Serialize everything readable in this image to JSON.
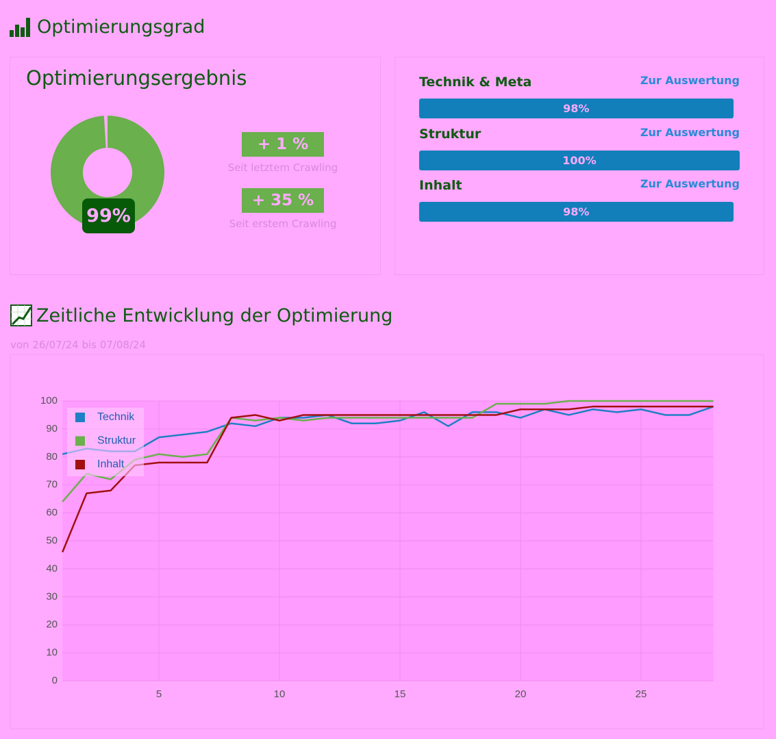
{
  "header": {
    "title": "Optimierungsgrad"
  },
  "result": {
    "title": "Optimierungsergebnis",
    "donut": {
      "value": 99,
      "label": "99%"
    },
    "changes": [
      {
        "value": "+ 1 %",
        "caption": "Seit letztem Crawling"
      },
      {
        "value": "+ 35 %",
        "caption": "Seit erstem Crawling"
      }
    ]
  },
  "categories": [
    {
      "name": "Technik & Meta",
      "link": "Zur Auswertung",
      "value": 98,
      "label": "98%"
    },
    {
      "name": "Struktur",
      "link": "Zur Auswertung",
      "value": 100,
      "label": "100%"
    },
    {
      "name": "Inhalt",
      "link": "Zur Auswertung",
      "value": 98,
      "label": "98%"
    }
  ],
  "development": {
    "title": "Zeitliche Entwicklung der Optimierung",
    "subtitle": "von 26/07/24 bis 07/08/24"
  },
  "chart_data": {
    "type": "line",
    "x": [
      1,
      2,
      3,
      4,
      5,
      6,
      7,
      8,
      9,
      10,
      11,
      12,
      13,
      14,
      15,
      16,
      17,
      18,
      19,
      20,
      21,
      22,
      23,
      24,
      25,
      26,
      27,
      28
    ],
    "series": [
      {
        "name": "Technik",
        "color": "#1f7fc4",
        "values": [
          81,
          83,
          82,
          82,
          87,
          88,
          89,
          92,
          91,
          94,
          94,
          95,
          92,
          92,
          93,
          96,
          91,
          96,
          96,
          94,
          97,
          95,
          97,
          96,
          97,
          95,
          95,
          98
        ]
      },
      {
        "name": "Struktur",
        "color": "#6ab04c",
        "values": [
          64,
          74,
          72,
          79,
          81,
          80,
          81,
          94,
          93,
          94,
          93,
          94,
          94,
          94,
          94,
          94,
          94,
          94,
          99,
          99,
          99,
          100,
          100,
          100,
          100,
          100,
          100,
          100
        ]
      },
      {
        "name": "Inhalt",
        "color": "#a01010",
        "values": [
          46,
          67,
          68,
          77,
          78,
          78,
          78,
          94,
          95,
          93,
          95,
          95,
          95,
          95,
          95,
          95,
          95,
          95,
          95,
          97,
          97,
          97,
          98,
          98,
          98,
          98,
          98,
          98
        ]
      }
    ],
    "xlim": [
      1,
      28
    ],
    "ylim": [
      0,
      100
    ],
    "xticks": [
      5,
      10,
      15,
      20,
      25
    ],
    "yticks": [
      0,
      10,
      20,
      30,
      40,
      50,
      60,
      70,
      80,
      90,
      100
    ],
    "grid": true,
    "legend": "top-left"
  }
}
